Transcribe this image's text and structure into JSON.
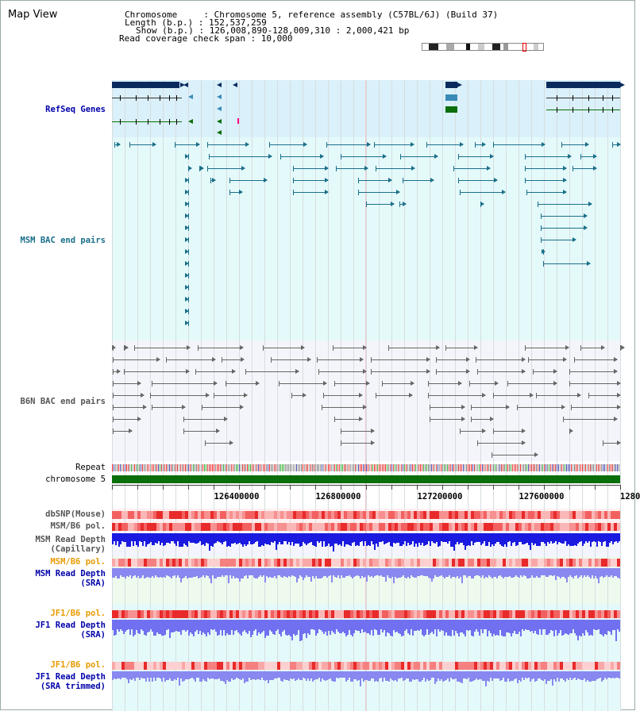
{
  "app": {
    "title": "Map View"
  },
  "info": {
    "chromosome": "Chromosome     : Chromosome 5, reference assembly (C57BL/6J) (Build 37)",
    "length": "Length (b.p.) : 152,537,259",
    "show": "Show (b.p.) : 126,008,890-128,009,310 : 2,000,421 bp",
    "coverage": "Read coverage check span : 10,000"
  },
  "tracks": {
    "refseq": "RefSeq Genes",
    "msm_bac": "MSM BAC end pairs",
    "b6n_bac": "B6N BAC end pairs",
    "repeat": "Repeat",
    "chromosome": "chromosome 5",
    "dbsnp": "dbSNP(Mouse)",
    "msm_b6_pol": "MSM/B6 pol.",
    "msm_read_depth_cap_1": "MSM Read Depth",
    "msm_read_depth_cap_2": "(Capillary)",
    "msm_b6_pol_2": "MSM/B6 pol.",
    "msm_read_depth_sra_1": "MSM Read Depth",
    "msm_read_depth_sra_2": "(SRA)",
    "jf1_b6_pol": "JF1/B6 pol.",
    "jf1_read_depth_sra_1": "JF1 Read Depth",
    "jf1_read_depth_sra_2": "(SRA)",
    "jf1_b6_pol_2": "JF1/B6 pol.",
    "jf1_read_depth_trim_1": "JF1 Read Depth",
    "jf1_read_depth_trim_2": "(SRA trimmed)"
  },
  "scale": {
    "labels": [
      "126400000",
      "126800000",
      "127200000",
      "127600000",
      "1280"
    ]
  },
  "colors": {
    "refseq_band": "#daf0fa",
    "msm_band": "#e4fafa",
    "b6n_band": "#f4f5fa",
    "msm_feature": "#1a6f8a",
    "b6n_feature": "#666666",
    "chromosome_bar": "#0a6e0a",
    "msm_label": "#1a6f8a",
    "b6n_label": "#555555",
    "refseq_label": "#0000aa",
    "orange_label": "#e89a00",
    "blue_label": "#0000aa",
    "gray_label": "#555555"
  }
}
